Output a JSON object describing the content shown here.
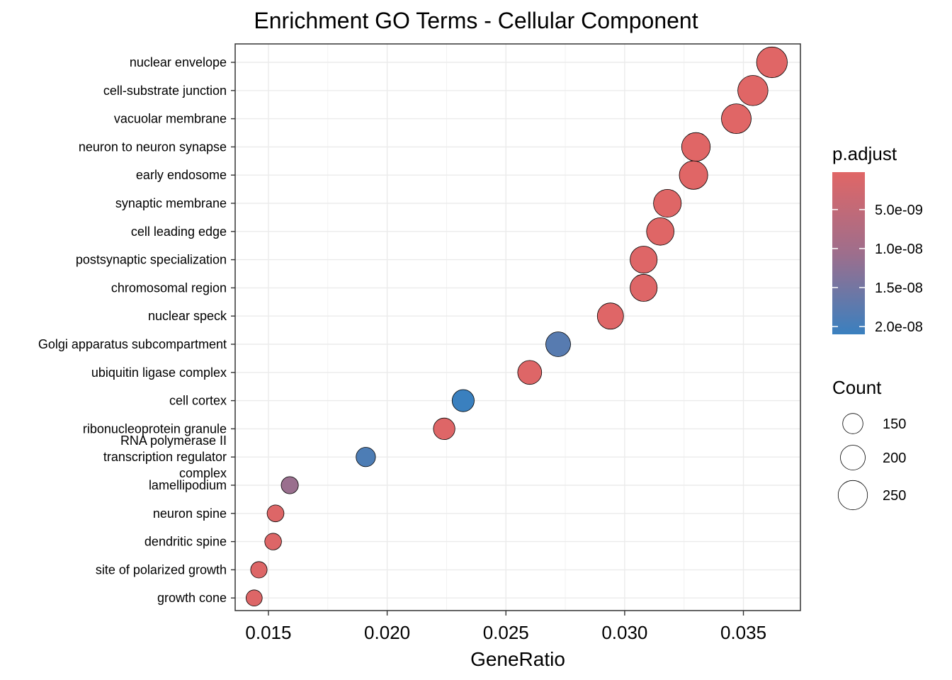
{
  "chart_data": {
    "type": "scatter",
    "title": "Enrichment GO Terms - Cellular Component",
    "xlabel": "GeneRatio",
    "ylabel": "",
    "xlim": [
      0.0136,
      0.0374
    ],
    "xticks": [
      0.015,
      0.02,
      0.025,
      0.03,
      0.035
    ],
    "xtick_labels": [
      "0.015",
      "0.020",
      "0.025",
      "0.030",
      "0.035"
    ],
    "grid": true,
    "points": [
      {
        "term": "nuclear envelope",
        "gene_ratio": 0.0362,
        "count": 265,
        "p_adjust": 2e-10
      },
      {
        "term": "cell-substrate junction",
        "gene_ratio": 0.0354,
        "count": 259,
        "p_adjust": 2e-10
      },
      {
        "term": "vacuolar membrane",
        "gene_ratio": 0.0347,
        "count": 254,
        "p_adjust": 2e-10
      },
      {
        "term": "neuron to neuron synapse",
        "gene_ratio": 0.033,
        "count": 242,
        "p_adjust": 2e-10
      },
      {
        "term": "early endosome",
        "gene_ratio": 0.0329,
        "count": 241,
        "p_adjust": 2e-10
      },
      {
        "term": "synaptic membrane",
        "gene_ratio": 0.0318,
        "count": 233,
        "p_adjust": 3e-10
      },
      {
        "term": "cell leading edge",
        "gene_ratio": 0.0315,
        "count": 230,
        "p_adjust": 3e-10
      },
      {
        "term": "postsynaptic specialization",
        "gene_ratio": 0.0308,
        "count": 225,
        "p_adjust": 5e-10
      },
      {
        "term": "chromosomal region",
        "gene_ratio": 0.0308,
        "count": 225,
        "p_adjust": 5e-10
      },
      {
        "term": "nuclear speck",
        "gene_ratio": 0.0294,
        "count": 215,
        "p_adjust": 4e-10
      },
      {
        "term": "Golgi apparatus subcompartment",
        "gene_ratio": 0.0272,
        "count": 199,
        "p_adjust": 1.8e-08
      },
      {
        "term": "ubiquitin ligase complex",
        "gene_ratio": 0.026,
        "count": 190,
        "p_adjust": 5e-10
      },
      {
        "term": "cell cortex",
        "gene_ratio": 0.0232,
        "count": 170,
        "p_adjust": 2.1e-08
      },
      {
        "term": "ribonucleoprotein granule",
        "gene_ratio": 0.0224,
        "count": 164,
        "p_adjust": 5e-10
      },
      {
        "term": "RNA polymerase II transcription regulator complex",
        "gene_ratio": 0.0191,
        "count": 140,
        "p_adjust": 1.9e-08
      },
      {
        "term": "lamellipodium",
        "gene_ratio": 0.0159,
        "count": 116,
        "p_adjust": 1.1e-08
      },
      {
        "term": "neuron spine",
        "gene_ratio": 0.0153,
        "count": 112,
        "p_adjust": 6e-10
      },
      {
        "term": "dendritic spine",
        "gene_ratio": 0.0152,
        "count": 111,
        "p_adjust": 6e-10
      },
      {
        "term": "site of polarized growth",
        "gene_ratio": 0.0146,
        "count": 107,
        "p_adjust": 6e-10
      },
      {
        "term": "growth cone",
        "gene_ratio": 0.0144,
        "count": 105,
        "p_adjust": 6e-10
      }
    ],
    "color_legend": {
      "title": "p.adjust",
      "range": [
        2e-10,
        2.1e-08
      ],
      "ticks": [
        5e-09,
        1e-08,
        1.5e-08,
        2e-08
      ],
      "tick_labels": [
        "5.0e-09",
        "1.0e-08",
        "1.5e-08",
        "2.0e-08"
      ],
      "low_color": "#E06666",
      "high_color": "#3A80BF"
    },
    "size_legend": {
      "title": "Count",
      "values": [
        150,
        200,
        250
      ],
      "labels": [
        "150",
        "200",
        "250"
      ]
    },
    "legend_position": "right"
  }
}
